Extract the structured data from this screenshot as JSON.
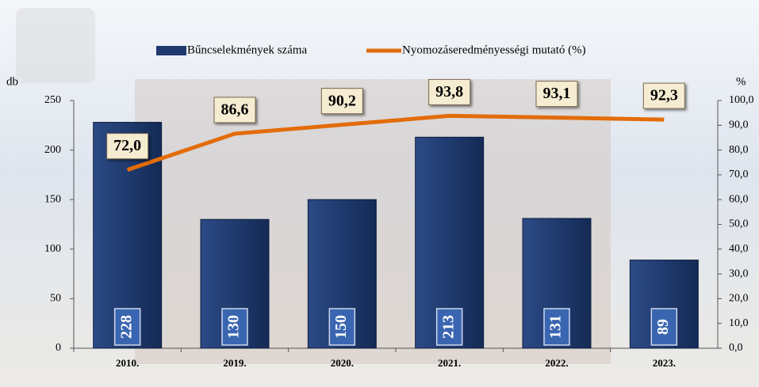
{
  "chart_data": {
    "type": "bar_line",
    "categories": [
      "2010.",
      "2019.",
      "2020.",
      "2021.",
      "2022.",
      "2023."
    ],
    "series": [
      {
        "name": "Bűncselekmények száma",
        "color": "#1f3a6e",
        "values": [
          228,
          130,
          150,
          213,
          131,
          89
        ]
      },
      {
        "name": "Nyomozáseredményességi mutató (%)",
        "color": "#e36c09",
        "axis": "y2",
        "values": [
          72.0,
          86.6,
          90.2,
          93.8,
          93.1,
          92.3
        ],
        "value_labels": [
          "72,0",
          "86,6",
          "90,2",
          "93,8",
          "93,1",
          "92,3"
        ]
      }
    ],
    "ylabel": "db",
    "y2label": "%",
    "ylim": [
      0,
      250
    ],
    "yticks": [
      0,
      50,
      100,
      150,
      200,
      250
    ],
    "y2lim": [
      0,
      100
    ],
    "y2ticks": [
      {
        "value": 0,
        "label": "0,0"
      },
      {
        "value": 10,
        "label": "10,0"
      },
      {
        "value": 20,
        "label": "20,0"
      },
      {
        "value": 30,
        "label": "30,0"
      },
      {
        "value": 40,
        "label": "40,0"
      },
      {
        "value": 50,
        "label": "50,0"
      },
      {
        "value": 60,
        "label": "60,0"
      },
      {
        "value": 70,
        "label": "70,0"
      },
      {
        "value": 80,
        "label": "80,0"
      },
      {
        "value": 90,
        "label": "90,0"
      },
      {
        "value": 100,
        "label": "100,0"
      }
    ],
    "legend": "top"
  }
}
